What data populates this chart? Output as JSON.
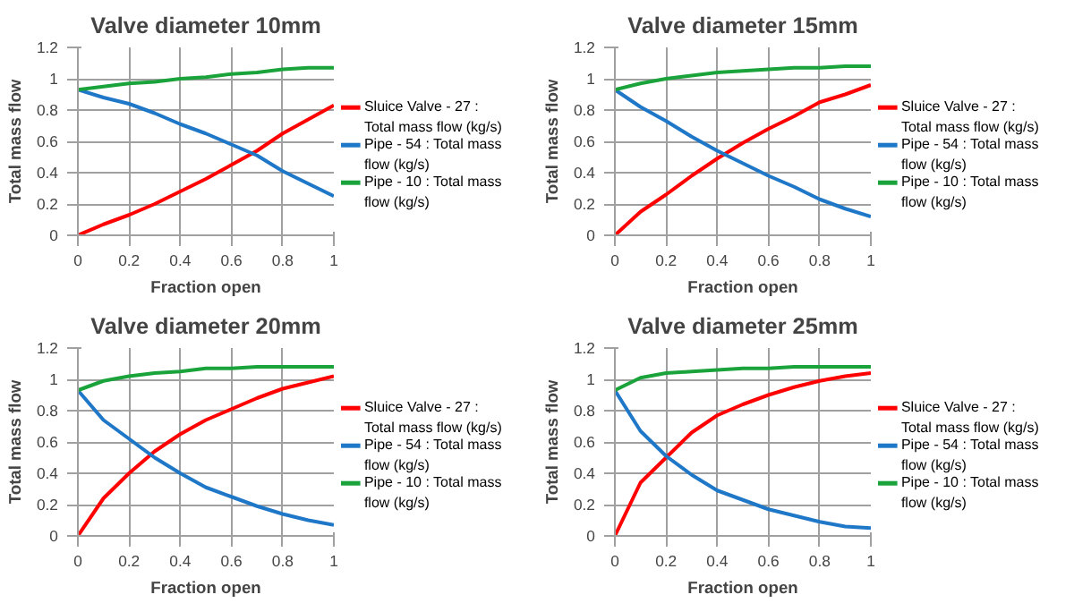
{
  "chart_data": [
    {
      "type": "line",
      "title": "Valve diameter 10mm",
      "xlabel": "Fraction open",
      "ylabel": "Total mass flow",
      "x": [
        0,
        0.1,
        0.2,
        0.3,
        0.4,
        0.5,
        0.6,
        0.7,
        0.8,
        0.9,
        1
      ],
      "xlim": [
        0,
        1
      ],
      "xticks": [
        0,
        0.2,
        0.4,
        0.6,
        0.8,
        1
      ],
      "ylim": [
        0,
        1.2
      ],
      "yticks": [
        0,
        0.2,
        0.4,
        0.6,
        0.8,
        1,
        1.2
      ],
      "grid": true,
      "legend": "right",
      "series": [
        {
          "name": "Sluice Valve - 27 : Total mass flow (kg/s)",
          "color": "#ff0000",
          "values": [
            0,
            0.07,
            0.13,
            0.2,
            0.28,
            0.36,
            0.45,
            0.54,
            0.65,
            0.74,
            0.83
          ]
        },
        {
          "name": "Pipe - 54 : Total mass flow (kg/s)",
          "color": "#1f77c8",
          "values": [
            0.93,
            0.88,
            0.84,
            0.78,
            0.71,
            0.65,
            0.58,
            0.51,
            0.41,
            0.33,
            0.25
          ]
        },
        {
          "name": "Pipe - 10 : Total mass flow (kg/s)",
          "color": "#1aa33a",
          "values": [
            0.93,
            0.95,
            0.97,
            0.98,
            1.0,
            1.01,
            1.03,
            1.04,
            1.06,
            1.07,
            1.07
          ]
        }
      ]
    },
    {
      "type": "line",
      "title": "Valve diameter 15mm",
      "xlabel": "Fraction open",
      "ylabel": "Total mass flow",
      "x": [
        0,
        0.1,
        0.2,
        0.3,
        0.4,
        0.5,
        0.6,
        0.7,
        0.8,
        0.9,
        1
      ],
      "xlim": [
        0,
        1
      ],
      "xticks": [
        0,
        0.2,
        0.4,
        0.6,
        0.8,
        1
      ],
      "ylim": [
        0,
        1.2
      ],
      "yticks": [
        0,
        0.2,
        0.4,
        0.6,
        0.8,
        1,
        1.2
      ],
      "grid": true,
      "legend": "right",
      "series": [
        {
          "name": "Sluice Valve - 27 : Total mass flow (kg/s)",
          "color": "#ff0000",
          "values": [
            0,
            0.15,
            0.26,
            0.38,
            0.49,
            0.59,
            0.68,
            0.76,
            0.85,
            0.9,
            0.96
          ]
        },
        {
          "name": "Pipe - 54 : Total mass flow (kg/s)",
          "color": "#1f77c8",
          "values": [
            0.93,
            0.82,
            0.73,
            0.63,
            0.54,
            0.46,
            0.38,
            0.31,
            0.23,
            0.17,
            0.12
          ]
        },
        {
          "name": "Pipe - 10 : Total mass flow (kg/s)",
          "color": "#1aa33a",
          "values": [
            0.93,
            0.97,
            1.0,
            1.02,
            1.04,
            1.05,
            1.06,
            1.07,
            1.07,
            1.08,
            1.08
          ]
        }
      ]
    },
    {
      "type": "line",
      "title": "Valve diameter 20mm",
      "xlabel": "Fraction open",
      "ylabel": "Total mass flow",
      "x": [
        0,
        0.1,
        0.2,
        0.3,
        0.4,
        0.5,
        0.6,
        0.7,
        0.8,
        0.9,
        1
      ],
      "xlim": [
        0,
        1
      ],
      "xticks": [
        0,
        0.2,
        0.4,
        0.6,
        0.8,
        1
      ],
      "ylim": [
        0,
        1.2
      ],
      "yticks": [
        0,
        0.2,
        0.4,
        0.6,
        0.8,
        1,
        1.2
      ],
      "grid": true,
      "legend": "right",
      "series": [
        {
          "name": "Sluice Valve - 27 : Total mass flow (kg/s)",
          "color": "#ff0000",
          "values": [
            0,
            0.24,
            0.4,
            0.54,
            0.65,
            0.74,
            0.81,
            0.88,
            0.94,
            0.98,
            1.02
          ]
        },
        {
          "name": "Pipe - 54 : Total mass flow (kg/s)",
          "color": "#1f77c8",
          "values": [
            0.93,
            0.74,
            0.62,
            0.5,
            0.4,
            0.31,
            0.25,
            0.19,
            0.14,
            0.1,
            0.07
          ]
        },
        {
          "name": "Pipe - 10 : Total mass flow (kg/s)",
          "color": "#1aa33a",
          "values": [
            0.93,
            0.99,
            1.02,
            1.04,
            1.05,
            1.07,
            1.07,
            1.08,
            1.08,
            1.08,
            1.08
          ]
        }
      ]
    },
    {
      "type": "line",
      "title": "Valve diameter 25mm",
      "xlabel": "Fraction open",
      "ylabel": "Total mass flow",
      "x": [
        0,
        0.1,
        0.2,
        0.3,
        0.4,
        0.5,
        0.6,
        0.7,
        0.8,
        0.9,
        1
      ],
      "xlim": [
        0,
        1
      ],
      "xticks": [
        0,
        0.2,
        0.4,
        0.6,
        0.8,
        1
      ],
      "ylim": [
        0,
        1.2
      ],
      "yticks": [
        0,
        0.2,
        0.4,
        0.6,
        0.8,
        1,
        1.2
      ],
      "grid": true,
      "legend": "right",
      "series": [
        {
          "name": "Sluice Valve - 27 : Total mass flow (kg/s)",
          "color": "#ff0000",
          "values": [
            0,
            0.34,
            0.5,
            0.66,
            0.77,
            0.84,
            0.9,
            0.95,
            0.99,
            1.02,
            1.04
          ]
        },
        {
          "name": "Pipe - 54 : Total mass flow (kg/s)",
          "color": "#1f77c8",
          "values": [
            0.93,
            0.67,
            0.51,
            0.39,
            0.29,
            0.23,
            0.17,
            0.13,
            0.09,
            0.06,
            0.05
          ]
        },
        {
          "name": "Pipe - 10 : Total mass flow (kg/s)",
          "color": "#1aa33a",
          "values": [
            0.93,
            1.01,
            1.04,
            1.05,
            1.06,
            1.07,
            1.07,
            1.08,
            1.08,
            1.08,
            1.08
          ]
        }
      ]
    }
  ]
}
